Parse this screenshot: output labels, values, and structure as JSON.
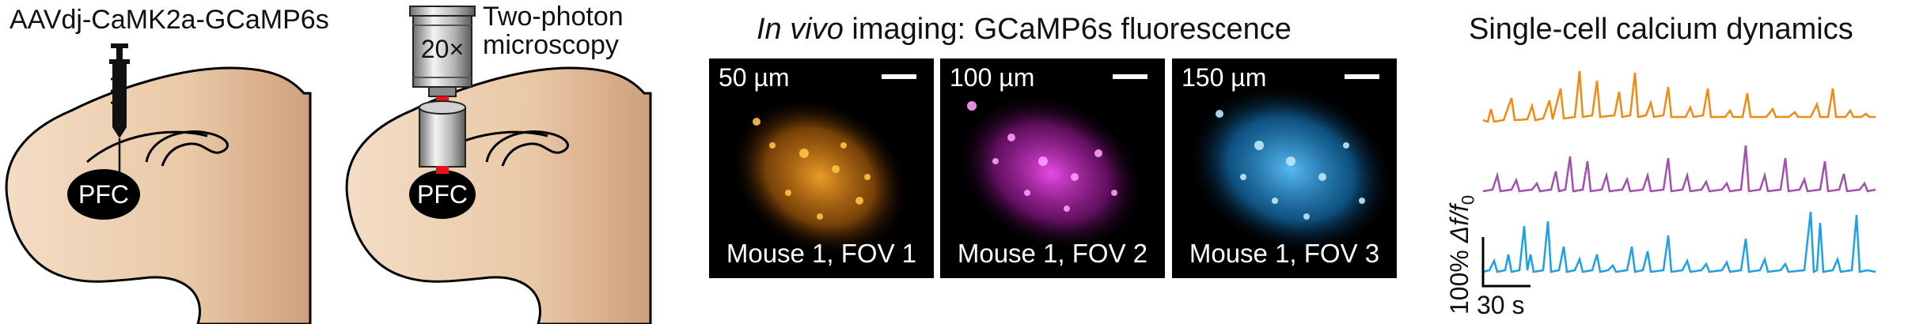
{
  "injection": {
    "label": "AAVdj-CaMK2a-GCaMP6s",
    "region": "PFC"
  },
  "microscopy": {
    "objective": "20×",
    "label_line1": "Two-photon",
    "label_line2": "microscopy",
    "region": "PFC"
  },
  "imaging": {
    "title_italic": "In vivo",
    "title_rest": " imaging: GCaMP6s fluorescence",
    "panels": [
      {
        "depth": "50 µm",
        "fov": "Mouse 1, FOV 1",
        "color": "#f29a1e"
      },
      {
        "depth": "100 µm",
        "fov": "Mouse 1, FOV 2",
        "color": "#e43fe0"
      },
      {
        "depth": "150 µm",
        "fov": "Mouse 1, FOV 3",
        "color": "#2fa8f0"
      }
    ]
  },
  "calcium": {
    "title": "Single-cell calcium dynamics",
    "y_scale_label_prefix": "100% ",
    "y_scale_label_df": "Δf/f",
    "y_scale_label_sub": "0",
    "x_scale_label": "30 s",
    "traces": [
      {
        "color": "#f08a12"
      },
      {
        "color": "#a24fae"
      },
      {
        "color": "#1f9fe6"
      }
    ]
  }
}
